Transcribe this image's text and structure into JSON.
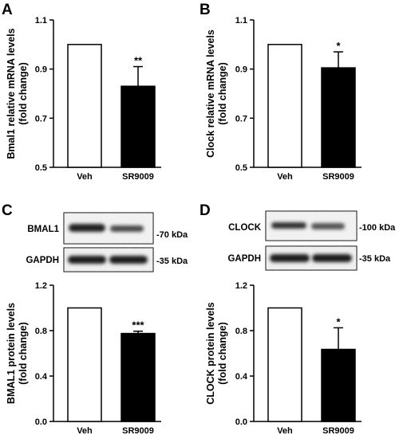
{
  "chart_data": [
    {
      "panel": "A",
      "type": "bar",
      "categories": [
        "Veh",
        "SR9009"
      ],
      "values": [
        1.0,
        0.83
      ],
      "errors": [
        0,
        0.08
      ],
      "significance": [
        "",
        "**"
      ],
      "ylabel_line1": "Bmal1 relative mRNA levels",
      "ylabel_line2": "(fold change)",
      "ylim": [
        0.5,
        1.1
      ],
      "yticks": [
        "0.5",
        "0.7",
        "0.9",
        "1.1"
      ],
      "bar_fills": [
        "#ffffff",
        "#000000"
      ]
    },
    {
      "panel": "B",
      "type": "bar",
      "categories": [
        "Veh",
        "SR9009"
      ],
      "values": [
        1.0,
        0.905
      ],
      "errors": [
        0,
        0.065
      ],
      "significance": [
        "",
        "*"
      ],
      "ylabel_line1": "Clock relative mRNA levels",
      "ylabel_line2": "(fold change)",
      "ylim": [
        0.5,
        1.1
      ],
      "yticks": [
        "0.5",
        "0.7",
        "0.9",
        "1.1"
      ],
      "bar_fills": [
        "#ffffff",
        "#000000"
      ]
    },
    {
      "panel": "C",
      "type": "bar",
      "categories": [
        "Veh",
        "SR9009"
      ],
      "values": [
        1.0,
        0.775
      ],
      "errors": [
        0,
        0.02
      ],
      "significance": [
        "",
        "***"
      ],
      "ylabel_line1": "BMAL1 protein levels",
      "ylabel_line2": "(fold change)",
      "ylim": [
        0.0,
        1.2
      ],
      "yticks": [
        "0.0",
        "0.4",
        "0.8",
        "1.2"
      ],
      "bar_fills": [
        "#ffffff",
        "#000000"
      ]
    },
    {
      "panel": "D",
      "type": "bar",
      "categories": [
        "Veh",
        "SR9009"
      ],
      "values": [
        1.0,
        0.635
      ],
      "errors": [
        0,
        0.19
      ],
      "significance": [
        "",
        "*"
      ],
      "ylabel_line1": "CLOCK protein levels",
      "ylabel_line2": "(fold change)",
      "ylim": [
        0.0,
        1.2
      ],
      "yticks": [
        "0.0",
        "0.4",
        "0.8",
        "1.2"
      ],
      "bar_fills": [
        "#ffffff",
        "#000000"
      ]
    }
  ],
  "blots": {
    "C": {
      "target": "BMAL1",
      "target_kda": "-70 kDa",
      "control": "GAPDH",
      "control_kda": "-35 kDa"
    },
    "D": {
      "target": "CLOCK",
      "target_kda": "-100 kDa",
      "control": "GAPDH",
      "control_kda": "-35 kDa"
    }
  }
}
